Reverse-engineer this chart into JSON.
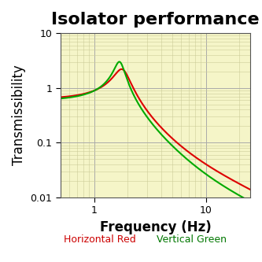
{
  "title": "Isolator performance",
  "xlabel": "Frequency (Hz)",
  "ylabel": "Transmissibility",
  "xlim": [
    0.5,
    25
  ],
  "ylim": [
    0.01,
    10
  ],
  "background_color": "#f5f5c8",
  "figure_background_color": "#ffffff",
  "grid_major_color": "#aaaaaa",
  "grid_minor_color": "#cccc99",
  "annotations": [
    {
      "text": "Horizontal Red",
      "fig_x": 0.38,
      "color": "#cc0000"
    },
    {
      "text": "Vertical Green",
      "fig_x": 0.73,
      "color": "#007700"
    }
  ],
  "red_curve": {
    "color": "#dd0000",
    "linewidth": 1.5,
    "f0": 1.8,
    "zeta": 0.15,
    "peak_scale": 2.2
  },
  "green_curve": {
    "color": "#00aa00",
    "linewidth": 1.5,
    "f0": 1.7,
    "zeta": 0.1,
    "peak_scale": 3.0
  },
  "title_fontsize": 16,
  "label_fontsize": 12,
  "annotation_fontsize": 9,
  "tick_label_fontsize": 9
}
